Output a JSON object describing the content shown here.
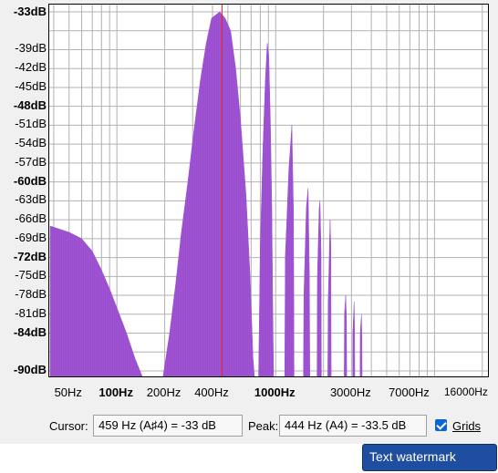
{
  "chart_data": {
    "type": "area",
    "title": "",
    "x_scale": "log",
    "y_ticks": [
      "-33dB",
      "-39dB",
      "-42dB",
      "-45dB",
      "-48dB",
      "-51dB",
      "-54dB",
      "-57dB",
      "-60dB",
      "-63dB",
      "-66dB",
      "-69dB",
      "-72dB",
      "-75dB",
      "-78dB",
      "-81dB",
      "-84dB",
      "-90dB"
    ],
    "y_ticks_bold": [
      "-33dB",
      "-48dB",
      "-60dB",
      "-72dB",
      "-84dB",
      "-90dB"
    ],
    "x_ticks": [
      "50Hz",
      "100Hz",
      "200Hz",
      "400Hz",
      "1000Hz",
      "3000Hz",
      "7000Hz",
      "16000Hz"
    ],
    "x_ticks_bold": [
      "100Hz",
      "1000Hz"
    ],
    "ylim": [
      -91,
      -32
    ],
    "grid": true,
    "cursor_hz": 459,
    "series": [
      {
        "points": [
          [
            38,
            -67
          ],
          [
            50,
            -68
          ],
          [
            60,
            -69
          ],
          [
            70,
            -71
          ],
          [
            80,
            -74
          ],
          [
            90,
            -77
          ],
          [
            100,
            -80
          ],
          [
            115,
            -84
          ],
          [
            130,
            -88
          ],
          [
            145,
            -91
          ],
          [
            195,
            -91
          ],
          [
            215,
            -84
          ],
          [
            235,
            -76
          ],
          [
            255,
            -68
          ],
          [
            280,
            -60
          ],
          [
            305,
            -52
          ],
          [
            335,
            -44
          ],
          [
            365,
            -38
          ],
          [
            395,
            -34
          ],
          [
            444,
            -33
          ],
          [
            480,
            -34
          ],
          [
            520,
            -36
          ],
          [
            560,
            -42
          ],
          [
            600,
            -50
          ],
          [
            650,
            -62
          ],
          [
            690,
            -75
          ],
          [
            720,
            -88
          ],
          [
            735,
            -91
          ],
          [
            780,
            -91
          ],
          [
            800,
            -70
          ],
          [
            830,
            -55
          ],
          [
            860,
            -44
          ],
          [
            885,
            -38
          ],
          [
            905,
            -40
          ],
          [
            925,
            -50
          ],
          [
            945,
            -64
          ],
          [
            960,
            -82
          ],
          [
            970,
            -91
          ],
          [
            1140,
            -91
          ],
          [
            1150,
            -72
          ],
          [
            1210,
            -58
          ],
          [
            1265,
            -51
          ],
          [
            1295,
            -65
          ],
          [
            1305,
            -91
          ],
          [
            1495,
            -91
          ],
          [
            1505,
            -78
          ],
          [
            1560,
            -64
          ],
          [
            1600,
            -61
          ],
          [
            1630,
            -75
          ],
          [
            1640,
            -91
          ],
          [
            1820,
            -91
          ],
          [
            1830,
            -75
          ],
          [
            1880,
            -64
          ],
          [
            1900,
            -63
          ],
          [
            1930,
            -71
          ],
          [
            1940,
            -91
          ],
          [
            2130,
            -91
          ],
          [
            2140,
            -79
          ],
          [
            2200,
            -66
          ],
          [
            2225,
            -70
          ],
          [
            2235,
            -91
          ],
          [
            2700,
            -91
          ],
          [
            2710,
            -81
          ],
          [
            2760,
            -78
          ],
          [
            2790,
            -82
          ],
          [
            2800,
            -91
          ],
          [
            3050,
            -91
          ],
          [
            3060,
            -84
          ],
          [
            3120,
            -79
          ],
          [
            3140,
            -84
          ],
          [
            3150,
            -91
          ],
          [
            3400,
            -91
          ],
          [
            3410,
            -84
          ],
          [
            3470,
            -81
          ],
          [
            3490,
            -85
          ],
          [
            3500,
            -91
          ]
        ]
      }
    ],
    "fill_color": "#9b4dcf",
    "grid_color": "#b0b0b0",
    "cursor_color": "#e02020"
  },
  "footer": {
    "cursor_label": "Cursor:",
    "cursor_value": "459 Hz (A♯4) = -33 dB",
    "peak_label": "Peak:",
    "peak_value": "444 Hz (A4) = -33.5 dB",
    "grids_label": "Grids",
    "grids_checked": true
  },
  "watermark": "Text watermark"
}
